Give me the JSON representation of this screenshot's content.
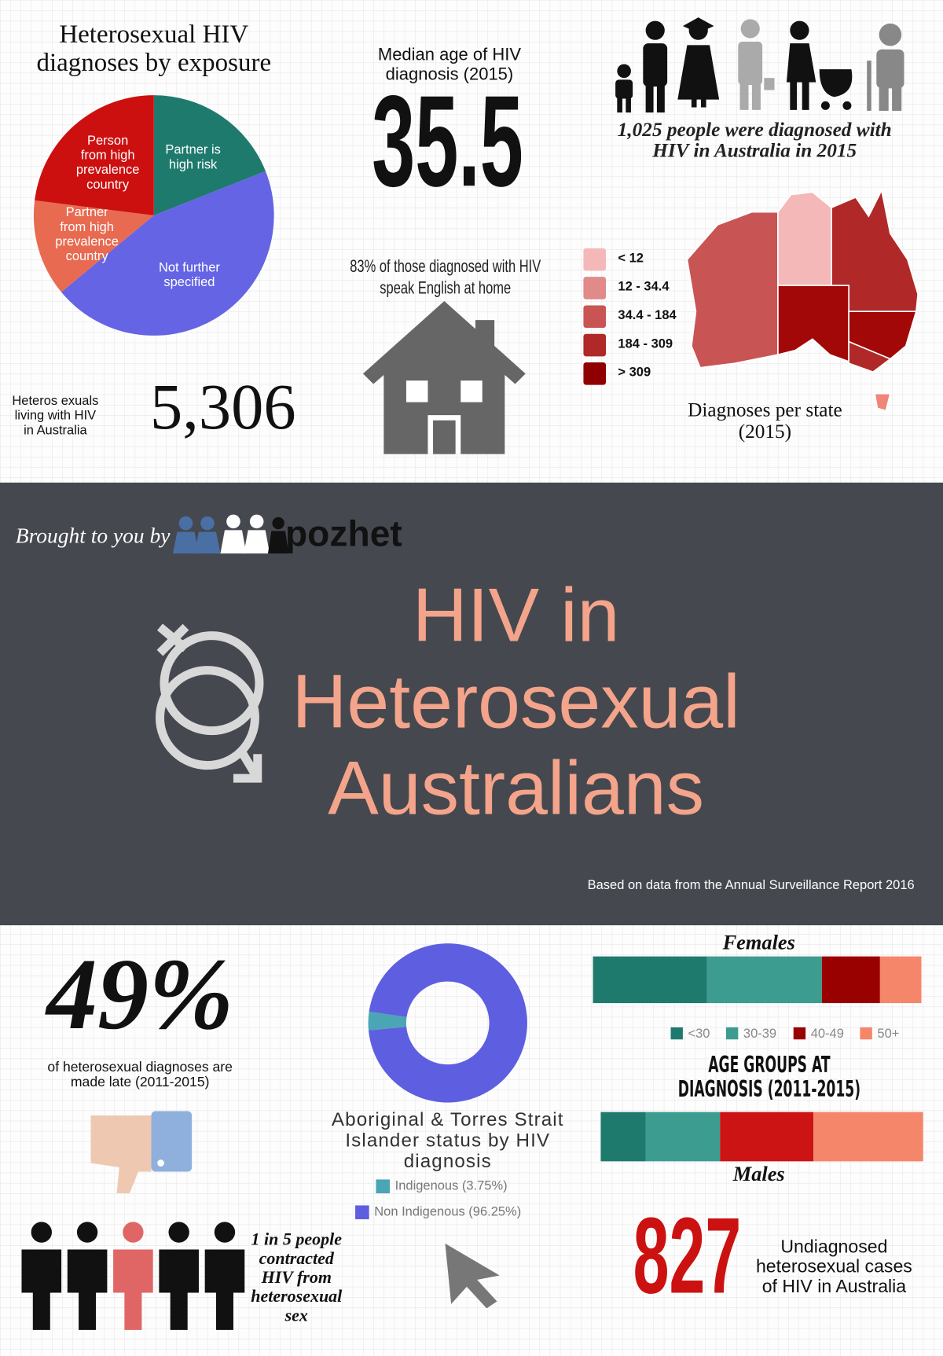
{
  "exposure_chart": {
    "type": "pie",
    "title": [
      "Heterosexual HIV",
      "diagnoses by exposure"
    ],
    "categories": [
      [
        "Partner is",
        "high risk"
      ],
      [
        "Not further",
        "specified"
      ],
      [
        "Partner",
        "from high",
        "prevalence",
        "country"
      ],
      [
        "Person",
        "from high",
        "prevalence",
        "country"
      ]
    ],
    "values": [
      19,
      45,
      13,
      23
    ],
    "colors": [
      "#1f7a6e",
      "#6464e4",
      "#e86a50",
      "#cc1010"
    ]
  },
  "median_age": {
    "label": [
      "Median age of HIV",
      "diagnosis (2015)"
    ],
    "value": "35.5"
  },
  "diagnosed_2015": [
    "1,025 people were diagnosed with",
    "HIV in Australia in 2015"
  ],
  "english_at_home": [
    "83% of those diagnosed with HIV",
    "speak English at home"
  ],
  "living_with_hiv": {
    "label": [
      "Heteros exuals",
      "living with HIV",
      "in Australia"
    ],
    "value": "5,306"
  },
  "state_map": {
    "title": [
      "Diagnoses per state",
      "(2015)"
    ],
    "legend": [
      {
        "label": "< 12",
        "color": "#f5b8b8"
      },
      {
        "label": "12 - 34.4",
        "color": "#e08a8a"
      },
      {
        "label": "34.4 - 184",
        "color": "#c95454"
      },
      {
        "label": "184 - 309",
        "color": "#b02828"
      },
      {
        "label": "> 309",
        "color": "#8f0000"
      }
    ]
  },
  "banner": {
    "brought_by": "Brought to you by",
    "brand": "pozhet",
    "title": [
      "HIV in",
      "Heterosexual",
      "Australians"
    ],
    "source": "Based on data from the Annual Surveillance Report 2016"
  },
  "late_diagnoses": {
    "value": "49%",
    "label": [
      "of heterosexual diagnoses are",
      "made late (2011-2015)"
    ]
  },
  "indigenous_chart": {
    "type": "donut",
    "title": [
      "Aboriginal & Torres Strait",
      "Islander status by HIV",
      "diagnosis"
    ],
    "categories": [
      "Indigenous (3.75%)",
      "Non Indigenous (96.25%)"
    ],
    "values": [
      3.75,
      96.25
    ],
    "colors": [
      "#4aa6b5",
      "#5e5ee0"
    ]
  },
  "age_chart": {
    "type": "stacked-bar",
    "title": [
      "AGE GROUPS AT",
      "DIAGNOSIS (2011-2015)"
    ],
    "categories": [
      "<30",
      "30-39",
      "40-49",
      "50+"
    ],
    "series": [
      {
        "name": "Females",
        "values": [
          34.7,
          35,
          17.7,
          12.6
        ],
        "colors": [
          "#1f7a6e",
          "#3d9c90",
          "#990000",
          "#f5866a"
        ]
      },
      {
        "name": "Males",
        "values": [
          14,
          23,
          29,
          34
        ],
        "colors": [
          "#1f7a6e",
          "#3d9c90",
          "#cc1414",
          "#f5866a"
        ]
      }
    ]
  },
  "one_in_five": [
    "1 in 5 people",
    "contracted",
    "HIV from",
    "heterosexual",
    "sex"
  ],
  "undiagnosed": {
    "value": "827",
    "label": [
      "Undiagnosed",
      "heterosexual cases",
      "of HIV in Australia"
    ]
  }
}
